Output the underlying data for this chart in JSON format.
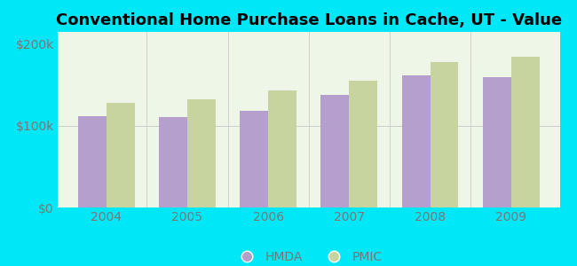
{
  "title": "Conventional Home Purchase Loans in Cache, UT - Value",
  "years": [
    2004,
    2005,
    2006,
    2007,
    2008,
    2009
  ],
  "hmda_values": [
    112000,
    111000,
    118000,
    138000,
    162000,
    160000
  ],
  "pmic_values": [
    128000,
    132000,
    143000,
    155000,
    178000,
    185000
  ],
  "hmda_color": "#b59fcc",
  "pmic_color": "#c8d4a0",
  "background_color": "#00e8f8",
  "plot_bg_color": "#eef6e8",
  "ytick_labels": [
    "$0",
    "$100k",
    "$200k"
  ],
  "ytick_values": [
    0,
    100000,
    200000
  ],
  "ylim": [
    0,
    215000
  ],
  "bar_width": 0.35,
  "title_fontsize": 13,
  "tick_fontsize": 10,
  "legend_labels": [
    "HMDA",
    "PMIC"
  ],
  "tick_color": "#777777"
}
